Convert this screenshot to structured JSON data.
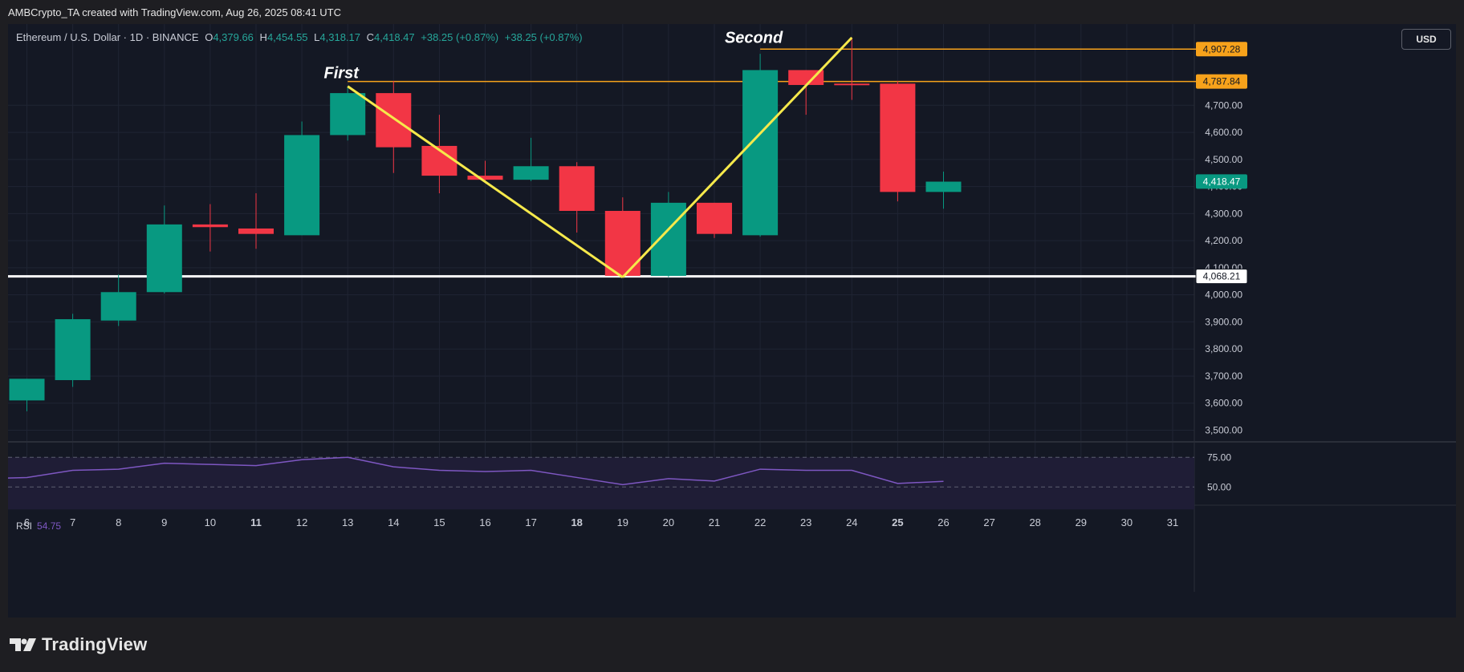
{
  "credit": "AMBCrypto_TA created with TradingView.com, Aug 26, 2025 08:41 UTC",
  "legend": {
    "symbol": "Ethereum / U.S. Dollar · 1D · BINANCE",
    "o_label": "O",
    "o": "4,379.66",
    "h_label": "H",
    "h": "4,454.55",
    "l_label": "L",
    "l": "4,318.17",
    "c_label": "C",
    "c": "4,418.47",
    "change1": "+38.25 (+0.87%)",
    "change2": "+38.25 (+0.87%)"
  },
  "currency_button": "USD",
  "rsi": {
    "label": "RSI",
    "value": "54.75"
  },
  "footer": {
    "brand": "TradingView"
  },
  "colors": {
    "up": "#089981",
    "down": "#f23645",
    "bg": "#141824",
    "trend": "#f6e94b",
    "hline_orange": "#f7a21b",
    "support": "#ffffff",
    "rsi": "#7e57c2"
  },
  "chart_data": {
    "type": "candlestick",
    "title": "Ethereum / U.S. Dollar · 1D · BINANCE",
    "x_tick_labels": [
      "6",
      "7",
      "8",
      "9",
      "10",
      "11",
      "12",
      "13",
      "14",
      "15",
      "16",
      "17",
      "18",
      "19",
      "20",
      "21",
      "22",
      "23",
      "24",
      "25",
      "26",
      "27",
      "28",
      "29",
      "30",
      "31"
    ],
    "bold_x_ticks": [
      "11",
      "18",
      "25"
    ],
    "y_tick_labels": [
      "3,500.00",
      "3,600.00",
      "3,700.00",
      "3,800.00",
      "3,900.00",
      "4,000.00",
      "4,100.00",
      "4,200.00",
      "4,300.00",
      "4,400.00",
      "4,500.00",
      "4,600.00",
      "4,700.00"
    ],
    "ylim": [
      3460,
      5000
    ],
    "candles": [
      {
        "day": "6",
        "o": 3610,
        "h": 3690,
        "l": 3570,
        "c": 3690
      },
      {
        "day": "7",
        "o": 3685,
        "h": 3930,
        "l": 3660,
        "c": 3910
      },
      {
        "day": "8",
        "o": 3905,
        "h": 4075,
        "l": 3885,
        "c": 4010
      },
      {
        "day": "9",
        "o": 4010,
        "h": 4330,
        "l": 4005,
        "c": 4260
      },
      {
        "day": "10",
        "o": 4260,
        "h": 4335,
        "l": 4160,
        "c": 4250
      },
      {
        "day": "11",
        "o": 4245,
        "h": 4375,
        "l": 4170,
        "c": 4225
      },
      {
        "day": "12",
        "o": 4220,
        "h": 4640,
        "l": 4220,
        "c": 4590
      },
      {
        "day": "13",
        "o": 4590,
        "h": 4770,
        "l": 4570,
        "c": 4745
      },
      {
        "day": "14",
        "o": 4745,
        "h": 4790,
        "l": 4450,
        "c": 4545
      },
      {
        "day": "15",
        "o": 4550,
        "h": 4665,
        "l": 4375,
        "c": 4440
      },
      {
        "day": "16",
        "o": 4440,
        "h": 4495,
        "l": 4420,
        "c": 4425
      },
      {
        "day": "17",
        "o": 4425,
        "h": 4580,
        "l": 4420,
        "c": 4475
      },
      {
        "day": "18",
        "o": 4475,
        "h": 4490,
        "l": 4230,
        "c": 4310
      },
      {
        "day": "19",
        "o": 4310,
        "h": 4360,
        "l": 4075,
        "c": 4070
      },
      {
        "day": "20",
        "o": 4070,
        "h": 4380,
        "l": 4065,
        "c": 4340
      },
      {
        "day": "21",
        "o": 4340,
        "h": 4340,
        "l": 4210,
        "c": 4225
      },
      {
        "day": "22",
        "o": 4220,
        "h": 4890,
        "l": 4215,
        "c": 4830
      },
      {
        "day": "23",
        "o": 4830,
        "h": 4830,
        "l": 4665,
        "c": 4775
      },
      {
        "day": "24",
        "o": 4780,
        "h": 4950,
        "l": 4720,
        "c": 4775
      },
      {
        "day": "25",
        "o": 4780,
        "h": 4790,
        "l": 4345,
        "c": 4380
      },
      {
        "day": "26",
        "o": 4380,
        "h": 4455,
        "l": 4318,
        "c": 4418
      }
    ],
    "price_labels": [
      {
        "text": "4,907.28",
        "value": 4907.28,
        "style": "orange"
      },
      {
        "text": "4,787.84",
        "value": 4787.84,
        "style": "orange"
      },
      {
        "text": "4,418.47",
        "value": 4418.47,
        "style": "green"
      },
      {
        "text": "4,068.21",
        "value": 4068.21,
        "style": "white"
      }
    ],
    "horizontal_lines": [
      {
        "value": 4907.28,
        "from_day": "22",
        "color": "orange"
      },
      {
        "value": 4787.84,
        "from_day": "13",
        "color": "orange"
      },
      {
        "value": 4068.21,
        "from_day": "6",
        "color": "white"
      }
    ],
    "trend_lines": [
      [
        {
          "day": "13",
          "value": 4770
        },
        {
          "day": "19",
          "value": 4065
        }
      ],
      [
        {
          "day": "19",
          "value": 4065
        },
        {
          "day": "24",
          "value": 4950
        }
      ]
    ],
    "annotations": [
      {
        "text": "First",
        "day": "13",
        "value": 4800
      },
      {
        "text": "Second",
        "day": "22",
        "value": 4930
      }
    ],
    "rsi": {
      "y_tick_labels": [
        "75.00",
        "50.00"
      ],
      "levels": [
        75,
        50
      ],
      "ylim": [
        36,
        86
      ],
      "values": [
        58,
        64,
        65,
        70,
        69,
        68,
        73,
        75,
        67,
        64,
        63,
        64,
        58,
        52,
        57,
        55,
        65,
        64,
        64,
        53,
        54.75
      ]
    }
  }
}
